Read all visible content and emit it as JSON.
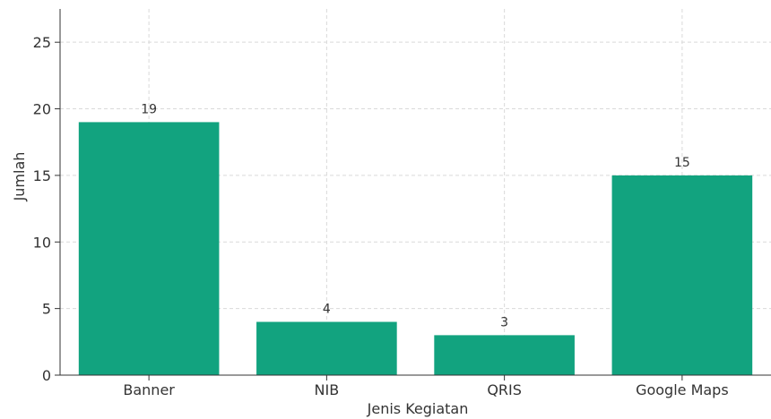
{
  "chart_data": {
    "type": "bar",
    "title": "",
    "xlabel": "Jenis Kegiatan",
    "ylabel": "Jumlah",
    "categories": [
      "Banner",
      "NIB",
      "QRIS",
      "Google Maps"
    ],
    "values": [
      19,
      4,
      3,
      15
    ],
    "ylim": [
      0,
      27.5
    ],
    "yticks": [
      0,
      5,
      10,
      15,
      20,
      25
    ],
    "grid": true,
    "data_labels": true,
    "bar_color": "#12a37f",
    "grid_color": "#d9d9d9",
    "text_color": "#333333"
  }
}
